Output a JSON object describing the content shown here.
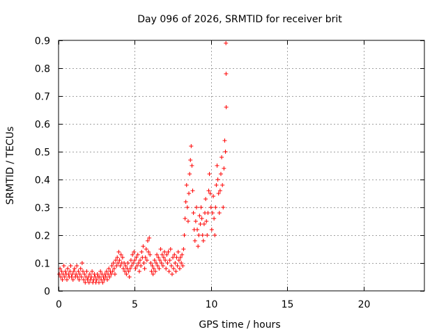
{
  "chart_data": {
    "type": "scatter",
    "title": "Day 096 of 2026, SRMTID for receiver brit",
    "xlabel": "GPS time / hours",
    "ylabel": "SRMTID / TECUs",
    "xlim": [
      0,
      24
    ],
    "ylim": [
      0,
      0.9
    ],
    "grid": true,
    "marker": "+",
    "series_color": "#ff0000",
    "x_ticks": [
      0,
      5,
      10,
      15,
      20
    ],
    "x_tick_labels": [
      "0",
      "5",
      "10",
      "15",
      "20"
    ],
    "y_ticks": [
      0,
      0.1,
      0.2,
      0.3,
      0.4,
      0.5,
      0.6,
      0.7,
      0.8,
      0.9
    ],
    "y_tick_labels": [
      "0",
      "0.1",
      "0.2",
      "0.3",
      "0.4",
      "0.5",
      "0.6",
      "0.7",
      "0.8",
      "0.9"
    ],
    "series": [
      {
        "name": "SRMTID",
        "points": [
          [
            0.05,
            0.06
          ],
          [
            0.1,
            0.08
          ],
          [
            0.15,
            0.05
          ],
          [
            0.2,
            0.07
          ],
          [
            0.25,
            0.04
          ],
          [
            0.3,
            0.06
          ],
          [
            0.35,
            0.09
          ],
          [
            0.4,
            0.05
          ],
          [
            0.45,
            0.07
          ],
          [
            0.5,
            0.06
          ],
          [
            0.55,
            0.04
          ],
          [
            0.6,
            0.08
          ],
          [
            0.65,
            0.06
          ],
          [
            0.7,
            0.05
          ],
          [
            0.75,
            0.07
          ],
          [
            0.8,
            0.09
          ],
          [
            0.85,
            0.05
          ],
          [
            0.9,
            0.06
          ],
          [
            0.95,
            0.04
          ],
          [
            1.0,
            0.07
          ],
          [
            1.05,
            0.08
          ],
          [
            1.1,
            0.05
          ],
          [
            1.15,
            0.06
          ],
          [
            1.2,
            0.09
          ],
          [
            1.25,
            0.05
          ],
          [
            1.3,
            0.07
          ],
          [
            1.35,
            0.04
          ],
          [
            1.4,
            0.06
          ],
          [
            1.45,
            0.08
          ],
          [
            1.5,
            0.05
          ],
          [
            1.55,
            0.1
          ],
          [
            1.6,
            0.07
          ],
          [
            1.65,
            0.04
          ],
          [
            1.7,
            0.06
          ],
          [
            1.75,
            0.03
          ],
          [
            1.8,
            0.05
          ],
          [
            1.85,
            0.07
          ],
          [
            1.9,
            0.04
          ],
          [
            1.95,
            0.05
          ],
          [
            2.0,
            0.03
          ],
          [
            2.05,
            0.06
          ],
          [
            2.1,
            0.04
          ],
          [
            2.15,
            0.05
          ],
          [
            2.2,
            0.07
          ],
          [
            2.25,
            0.03
          ],
          [
            2.3,
            0.04
          ],
          [
            2.35,
            0.06
          ],
          [
            2.4,
            0.05
          ],
          [
            2.45,
            0.03
          ],
          [
            2.5,
            0.04
          ],
          [
            2.55,
            0.06
          ],
          [
            2.6,
            0.05
          ],
          [
            2.65,
            0.03
          ],
          [
            2.7,
            0.05
          ],
          [
            2.75,
            0.07
          ],
          [
            2.8,
            0.04
          ],
          [
            2.85,
            0.06
          ],
          [
            2.9,
            0.03
          ],
          [
            2.95,
            0.05
          ],
          [
            3.0,
            0.04
          ],
          [
            3.05,
            0.06
          ],
          [
            3.1,
            0.05
          ],
          [
            3.15,
            0.07
          ],
          [
            3.2,
            0.04
          ],
          [
            3.25,
            0.06
          ],
          [
            3.3,
            0.08
          ],
          [
            3.35,
            0.05
          ],
          [
            3.4,
            0.07
          ],
          [
            3.45,
            0.06
          ],
          [
            3.5,
            0.09
          ],
          [
            3.55,
            0.07
          ],
          [
            3.6,
            0.1
          ],
          [
            3.65,
            0.08
          ],
          [
            3.7,
            0.06
          ],
          [
            3.75,
            0.11
          ],
          [
            3.8,
            0.09
          ],
          [
            3.85,
            0.12
          ],
          [
            3.9,
            0.1
          ],
          [
            3.95,
            0.14
          ],
          [
            4.0,
            0.11
          ],
          [
            4.05,
            0.09
          ],
          [
            4.1,
            0.13
          ],
          [
            4.15,
            0.1
          ],
          [
            4.2,
            0.12
          ],
          [
            4.25,
            0.08
          ],
          [
            4.3,
            0.1
          ],
          [
            4.35,
            0.07
          ],
          [
            4.4,
            0.09
          ],
          [
            4.45,
            0.06
          ],
          [
            4.5,
            0.08
          ],
          [
            4.55,
            0.1
          ],
          [
            4.6,
            0.07
          ],
          [
            4.65,
            0.05
          ],
          [
            4.7,
            0.08
          ],
          [
            4.75,
            0.11
          ],
          [
            4.8,
            0.09
          ],
          [
            4.85,
            0.13
          ],
          [
            4.9,
            0.1
          ],
          [
            4.95,
            0.14
          ],
          [
            5.0,
            0.11
          ],
          [
            5.05,
            0.08
          ],
          [
            5.1,
            0.12
          ],
          [
            5.15,
            0.09
          ],
          [
            5.2,
            0.13
          ],
          [
            5.25,
            0.1
          ],
          [
            5.3,
            0.07
          ],
          [
            5.35,
            0.11
          ],
          [
            5.4,
            0.09
          ],
          [
            5.45,
            0.14
          ],
          [
            5.5,
            0.12
          ],
          [
            5.55,
            0.16
          ],
          [
            5.6,
            0.1
          ],
          [
            5.65,
            0.08
          ],
          [
            5.7,
            0.12
          ],
          [
            5.75,
            0.15
          ],
          [
            5.8,
            0.11
          ],
          [
            5.85,
            0.18
          ],
          [
            5.9,
            0.14
          ],
          [
            5.95,
            0.19
          ],
          [
            6.0,
            0.13
          ],
          [
            6.05,
            0.1
          ],
          [
            6.1,
            0.07
          ],
          [
            6.15,
            0.09
          ],
          [
            6.2,
            0.06
          ],
          [
            6.25,
            0.08
          ],
          [
            6.3,
            0.11
          ],
          [
            6.35,
            0.07
          ],
          [
            6.4,
            0.1
          ],
          [
            6.45,
            0.13
          ],
          [
            6.5,
            0.09
          ],
          [
            6.55,
            0.12
          ],
          [
            6.6,
            0.08
          ],
          [
            6.65,
            0.11
          ],
          [
            6.7,
            0.15
          ],
          [
            6.75,
            0.1
          ],
          [
            6.8,
            0.13
          ],
          [
            6.85,
            0.09
          ],
          [
            6.9,
            0.12
          ],
          [
            6.95,
            0.14
          ],
          [
            7.0,
            0.11
          ],
          [
            7.05,
            0.08
          ],
          [
            7.1,
            0.13
          ],
          [
            7.15,
            0.1
          ],
          [
            7.2,
            0.14
          ],
          [
            7.25,
            0.07
          ],
          [
            7.3,
            0.11
          ],
          [
            7.35,
            0.15
          ],
          [
            7.4,
            0.09
          ],
          [
            7.45,
            0.06
          ],
          [
            7.5,
            0.12
          ],
          [
            7.55,
            0.08
          ],
          [
            7.6,
            0.13
          ],
          [
            7.65,
            0.1
          ],
          [
            7.7,
            0.07
          ],
          [
            7.75,
            0.12
          ],
          [
            7.8,
            0.09
          ],
          [
            7.85,
            0.14
          ],
          [
            7.9,
            0.11
          ],
          [
            7.95,
            0.08
          ],
          [
            8.0,
            0.12
          ],
          [
            8.05,
            0.1
          ],
          [
            8.1,
            0.13
          ],
          [
            8.15,
            0.09
          ],
          [
            8.2,
            0.15
          ],
          [
            8.25,
            0.2
          ],
          [
            8.3,
            0.26
          ],
          [
            8.35,
            0.32
          ],
          [
            8.4,
            0.38
          ],
          [
            8.45,
            0.3
          ],
          [
            8.5,
            0.25
          ],
          [
            8.55,
            0.35
          ],
          [
            8.6,
            0.42
          ],
          [
            8.65,
            0.47
          ],
          [
            8.7,
            0.52
          ],
          [
            8.75,
            0.45
          ],
          [
            8.8,
            0.36
          ],
          [
            8.85,
            0.28
          ],
          [
            8.9,
            0.22
          ],
          [
            8.95,
            0.18
          ],
          [
            9.0,
            0.25
          ],
          [
            9.05,
            0.3
          ],
          [
            9.1,
            0.22
          ],
          [
            9.15,
            0.16
          ],
          [
            9.2,
            0.2
          ],
          [
            9.25,
            0.27
          ],
          [
            9.3,
            0.24
          ],
          [
            9.35,
            0.3
          ],
          [
            9.4,
            0.26
          ],
          [
            9.45,
            0.2
          ],
          [
            9.5,
            0.18
          ],
          [
            9.55,
            0.24
          ],
          [
            9.6,
            0.28
          ],
          [
            9.65,
            0.33
          ],
          [
            9.7,
            0.25
          ],
          [
            9.75,
            0.2
          ],
          [
            9.8,
            0.28
          ],
          [
            9.85,
            0.36
          ],
          [
            9.9,
            0.42
          ],
          [
            9.95,
            0.35
          ],
          [
            10.0,
            0.3
          ],
          [
            10.05,
            0.22
          ],
          [
            10.1,
            0.28
          ],
          [
            10.15,
            0.34
          ],
          [
            10.2,
            0.26
          ],
          [
            10.25,
            0.2
          ],
          [
            10.3,
            0.3
          ],
          [
            10.35,
            0.38
          ],
          [
            10.4,
            0.45
          ],
          [
            10.45,
            0.4
          ],
          [
            10.5,
            0.35
          ],
          [
            10.55,
            0.28
          ],
          [
            10.6,
            0.36
          ],
          [
            10.65,
            0.42
          ],
          [
            10.7,
            0.48
          ],
          [
            10.75,
            0.38
          ],
          [
            10.8,
            0.3
          ],
          [
            10.85,
            0.44
          ],
          [
            10.9,
            0.54
          ],
          [
            10.95,
            0.5
          ],
          [
            10.98,
            0.89
          ],
          [
            10.99,
            0.78
          ],
          [
            11.0,
            0.66
          ]
        ]
      }
    ]
  }
}
